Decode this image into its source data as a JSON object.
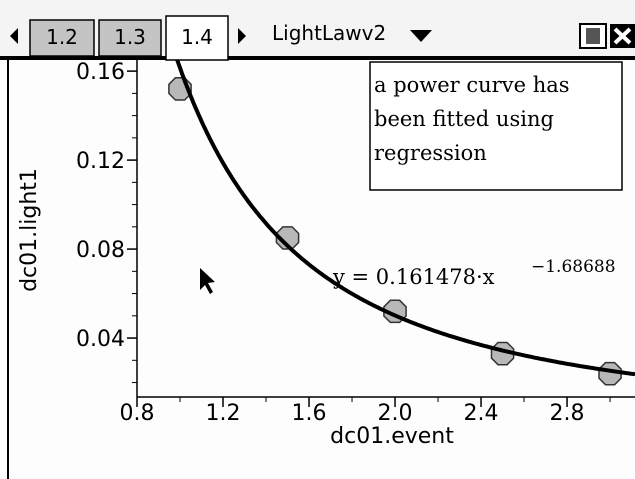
{
  "tabs": [
    "1.2",
    "1.3",
    "1.4"
  ],
  "active_tab": 2,
  "document_name": "LightLawv2",
  "chart_data": {
    "type": "scatter",
    "x_label": "dc01.event",
    "y_label": "dc01.light1",
    "x": [
      1.0,
      1.5,
      2.0,
      2.5,
      3.0
    ],
    "values": [
      0.152,
      0.085,
      0.052,
      0.033,
      0.024
    ],
    "marker_color": "#b8b8b8",
    "xlim": [
      0.8,
      3.116
    ],
    "ylim": [
      0.0135,
      0.165
    ],
    "xticks": [
      0.8,
      1.2,
      1.6,
      {
        "value": 2,
        "label": "2.0"
      },
      2.4,
      2.8
    ],
    "xminorticks": [
      1.0,
      1.4,
      1.8,
      2.2,
      2.6,
      3.0
    ],
    "yticks": [
      0.04,
      0.08,
      0.12,
      0.16
    ],
    "yminorticks": [
      0.02,
      0.03,
      0.05,
      0.06,
      0.07,
      0.09,
      0.1,
      0.11,
      0.13,
      0.14,
      0.15
    ],
    "fit": {
      "a": 0.161478,
      "b": -1.68688,
      "label": "y = 0.161478·x",
      "exponent_label": "−1.68688",
      "color": "#000000"
    },
    "annotation": [
      "a power curve has",
      "been fitted using",
      "regression"
    ]
  }
}
